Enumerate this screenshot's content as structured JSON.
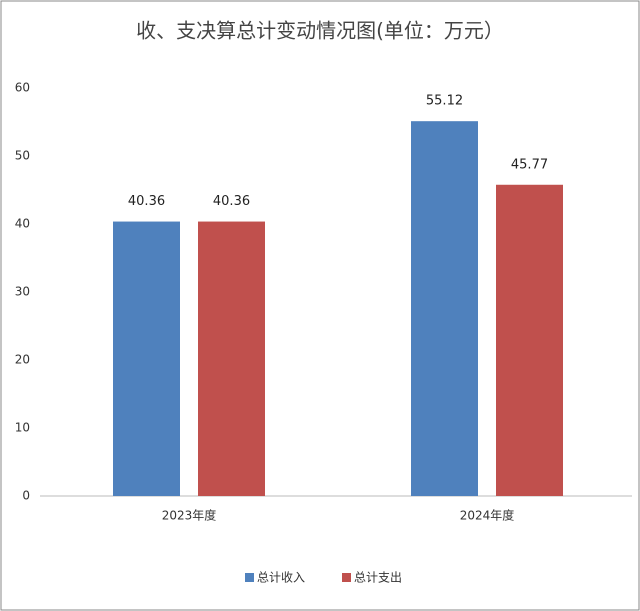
{
  "chart_data": {
    "type": "bar",
    "title": "收、支决算总计变动情况图(单位：万元）",
    "categories": [
      "2023年度",
      "2024年度"
    ],
    "series": [
      {
        "name": "总计收入",
        "color": "#4f81bd",
        "values": [
          40.36,
          55.12
        ]
      },
      {
        "name": "总计支出",
        "color": "#c0504d",
        "values": [
          40.36,
          45.77
        ]
      }
    ],
    "ylim": [
      0,
      60
    ],
    "yticks": [
      0,
      10,
      20,
      30,
      40,
      50,
      60
    ],
    "grid": false,
    "legend": "bottom"
  }
}
